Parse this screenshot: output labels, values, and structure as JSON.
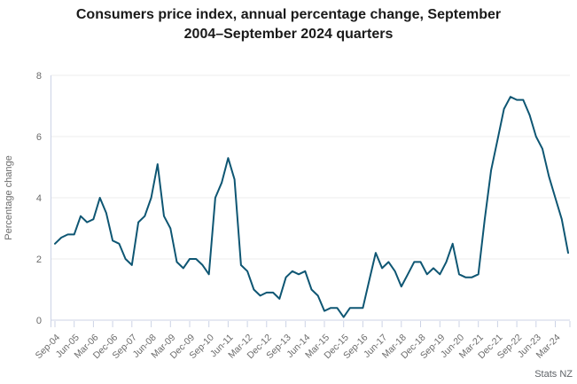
{
  "title": {
    "line1": "Consumers price index, annual percentage change, September",
    "line2": "2004–September 2024 quarters"
  },
  "source": "Stats NZ",
  "chart_data": {
    "type": "line",
    "title": "Consumers price index, annual percentage change, September 2004–September 2024 quarters",
    "xlabel": "",
    "ylabel": "Percentage change",
    "ylim": [
      0,
      8
    ],
    "y_ticks": [
      0,
      2,
      4,
      6,
      8
    ],
    "grid": "horizontal",
    "legend": "none",
    "line_color": "#0e5673",
    "grid_color": "#ececec",
    "axis_color": "#ccd3e6",
    "tick_label_color": "#6b6b6b",
    "tick_every": 3,
    "x_tick_labels": [
      "Sep-04",
      "Jun-05",
      "Mar-06",
      "Dec-06",
      "Sep-07",
      "Jun-08",
      "Mar-09",
      "Dec-09",
      "Sep-10",
      "Jun-11",
      "Mar-12",
      "Dec-12",
      "Sep-13",
      "Jun-14",
      "Mar-15",
      "Dec-15",
      "Sep-16",
      "Jun-17",
      "Mar-18",
      "Dec-18",
      "Sep-19",
      "Jun-20",
      "Mar-21",
      "Dec-21",
      "Sep-22",
      "Jun-23",
      "Mar-24"
    ],
    "quarters": [
      "Sep-04",
      "Dec-04",
      "Mar-05",
      "Jun-05",
      "Sep-05",
      "Dec-05",
      "Mar-06",
      "Jun-06",
      "Sep-06",
      "Dec-06",
      "Mar-07",
      "Jun-07",
      "Sep-07",
      "Dec-07",
      "Mar-08",
      "Jun-08",
      "Sep-08",
      "Dec-08",
      "Mar-09",
      "Jun-09",
      "Sep-09",
      "Dec-09",
      "Mar-10",
      "Jun-10",
      "Sep-10",
      "Dec-10",
      "Mar-11",
      "Jun-11",
      "Sep-11",
      "Dec-11",
      "Mar-12",
      "Jun-12",
      "Sep-12",
      "Dec-12",
      "Mar-13",
      "Jun-13",
      "Sep-13",
      "Dec-13",
      "Mar-14",
      "Jun-14",
      "Sep-14",
      "Dec-14",
      "Mar-15",
      "Jun-15",
      "Sep-15",
      "Dec-15",
      "Mar-16",
      "Jun-16",
      "Sep-16",
      "Dec-16",
      "Mar-17",
      "Jun-17",
      "Sep-17",
      "Dec-17",
      "Mar-18",
      "Jun-18",
      "Sep-18",
      "Dec-18",
      "Mar-19",
      "Jun-19",
      "Sep-19",
      "Dec-19",
      "Mar-20",
      "Jun-20",
      "Sep-20",
      "Dec-20",
      "Mar-21",
      "Jun-21",
      "Sep-21",
      "Dec-21",
      "Mar-22",
      "Jun-22",
      "Sep-22",
      "Dec-22",
      "Mar-23",
      "Jun-23",
      "Sep-23",
      "Dec-23",
      "Mar-24",
      "Jun-24",
      "Sep-24"
    ],
    "values": [
      2.5,
      2.7,
      2.8,
      2.8,
      3.4,
      3.2,
      3.3,
      4.0,
      3.5,
      2.6,
      2.5,
      2.0,
      1.8,
      3.2,
      3.4,
      4.0,
      5.1,
      3.4,
      3.0,
      1.9,
      1.7,
      2.0,
      2.0,
      1.8,
      1.5,
      4.0,
      4.5,
      5.3,
      4.6,
      1.8,
      1.6,
      1.0,
      0.8,
      0.9,
      0.9,
      0.7,
      1.4,
      1.6,
      1.5,
      1.6,
      1.0,
      0.8,
      0.3,
      0.4,
      0.4,
      0.1,
      0.4,
      0.4,
      0.4,
      1.3,
      2.2,
      1.7,
      1.9,
      1.6,
      1.1,
      1.5,
      1.9,
      1.9,
      1.5,
      1.7,
      1.5,
      1.9,
      2.5,
      1.5,
      1.4,
      1.4,
      1.5,
      3.3,
      4.9,
      5.9,
      6.9,
      7.3,
      7.2,
      7.2,
      6.7,
      6.0,
      5.6,
      4.7,
      4.0,
      3.3,
      2.2
    ]
  }
}
